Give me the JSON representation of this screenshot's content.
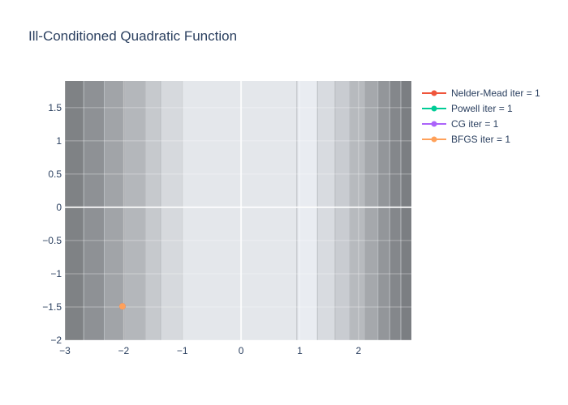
{
  "chart_data": {
    "type": "contour-line",
    "title": "Ill-Conditioned Quadratic Function",
    "xlabel": "",
    "ylabel": "",
    "xlim": [
      -3,
      2.9
    ],
    "ylim": [
      -2,
      1.9
    ],
    "x_ticks": [
      -3,
      -2,
      -1,
      0,
      1,
      2
    ],
    "x_tick_labels": [
      "−3",
      "−2",
      "−1",
      "0",
      "1",
      "2"
    ],
    "y_ticks": [
      -2,
      -1.5,
      -1,
      -0.5,
      0,
      0.5,
      1,
      1.5
    ],
    "y_tick_labels": [
      "−2",
      "−1.5",
      "−1",
      "−0.5",
      "0",
      "0.5",
      "1",
      "1.5"
    ],
    "grid": true,
    "legend_position": "top-right",
    "contour_levels": {
      "boundaries_x": [
        -2.68,
        -2.33,
        -1.98,
        -1.63,
        -1.37,
        -1.0,
        0.95,
        1.3,
        1.6,
        1.85,
        2.1,
        2.33,
        2.53,
        2.72
      ],
      "band_colors": [
        "#7f8285",
        "#8e9195",
        "#a1a4a8",
        "#b4b7bb",
        "#c6c9cd",
        "#d6d9dd",
        "#e4e7eb",
        "#e9ecf1",
        "#d8dbe0",
        "#c9ccd1",
        "#b7babe",
        "#a5a8ac",
        "#93969a",
        "#84878b",
        "#7b7e82"
      ]
    },
    "series": [
      {
        "name": "Nelder-Mead iter = 1",
        "color": "#ef553b",
        "x": [
          -2.02
        ],
        "y": [
          -1.49
        ]
      },
      {
        "name": "Powell iter = 1",
        "color": "#00cc96",
        "x": [
          -2.02
        ],
        "y": [
          -1.49
        ]
      },
      {
        "name": "CG iter = 1",
        "color": "#ab63fa",
        "x": [
          -2.02
        ],
        "y": [
          -1.49
        ]
      },
      {
        "name": "BFGS iter = 1",
        "color": "#ffa15a",
        "x": [
          -2.02
        ],
        "y": [
          -1.49
        ]
      }
    ]
  }
}
